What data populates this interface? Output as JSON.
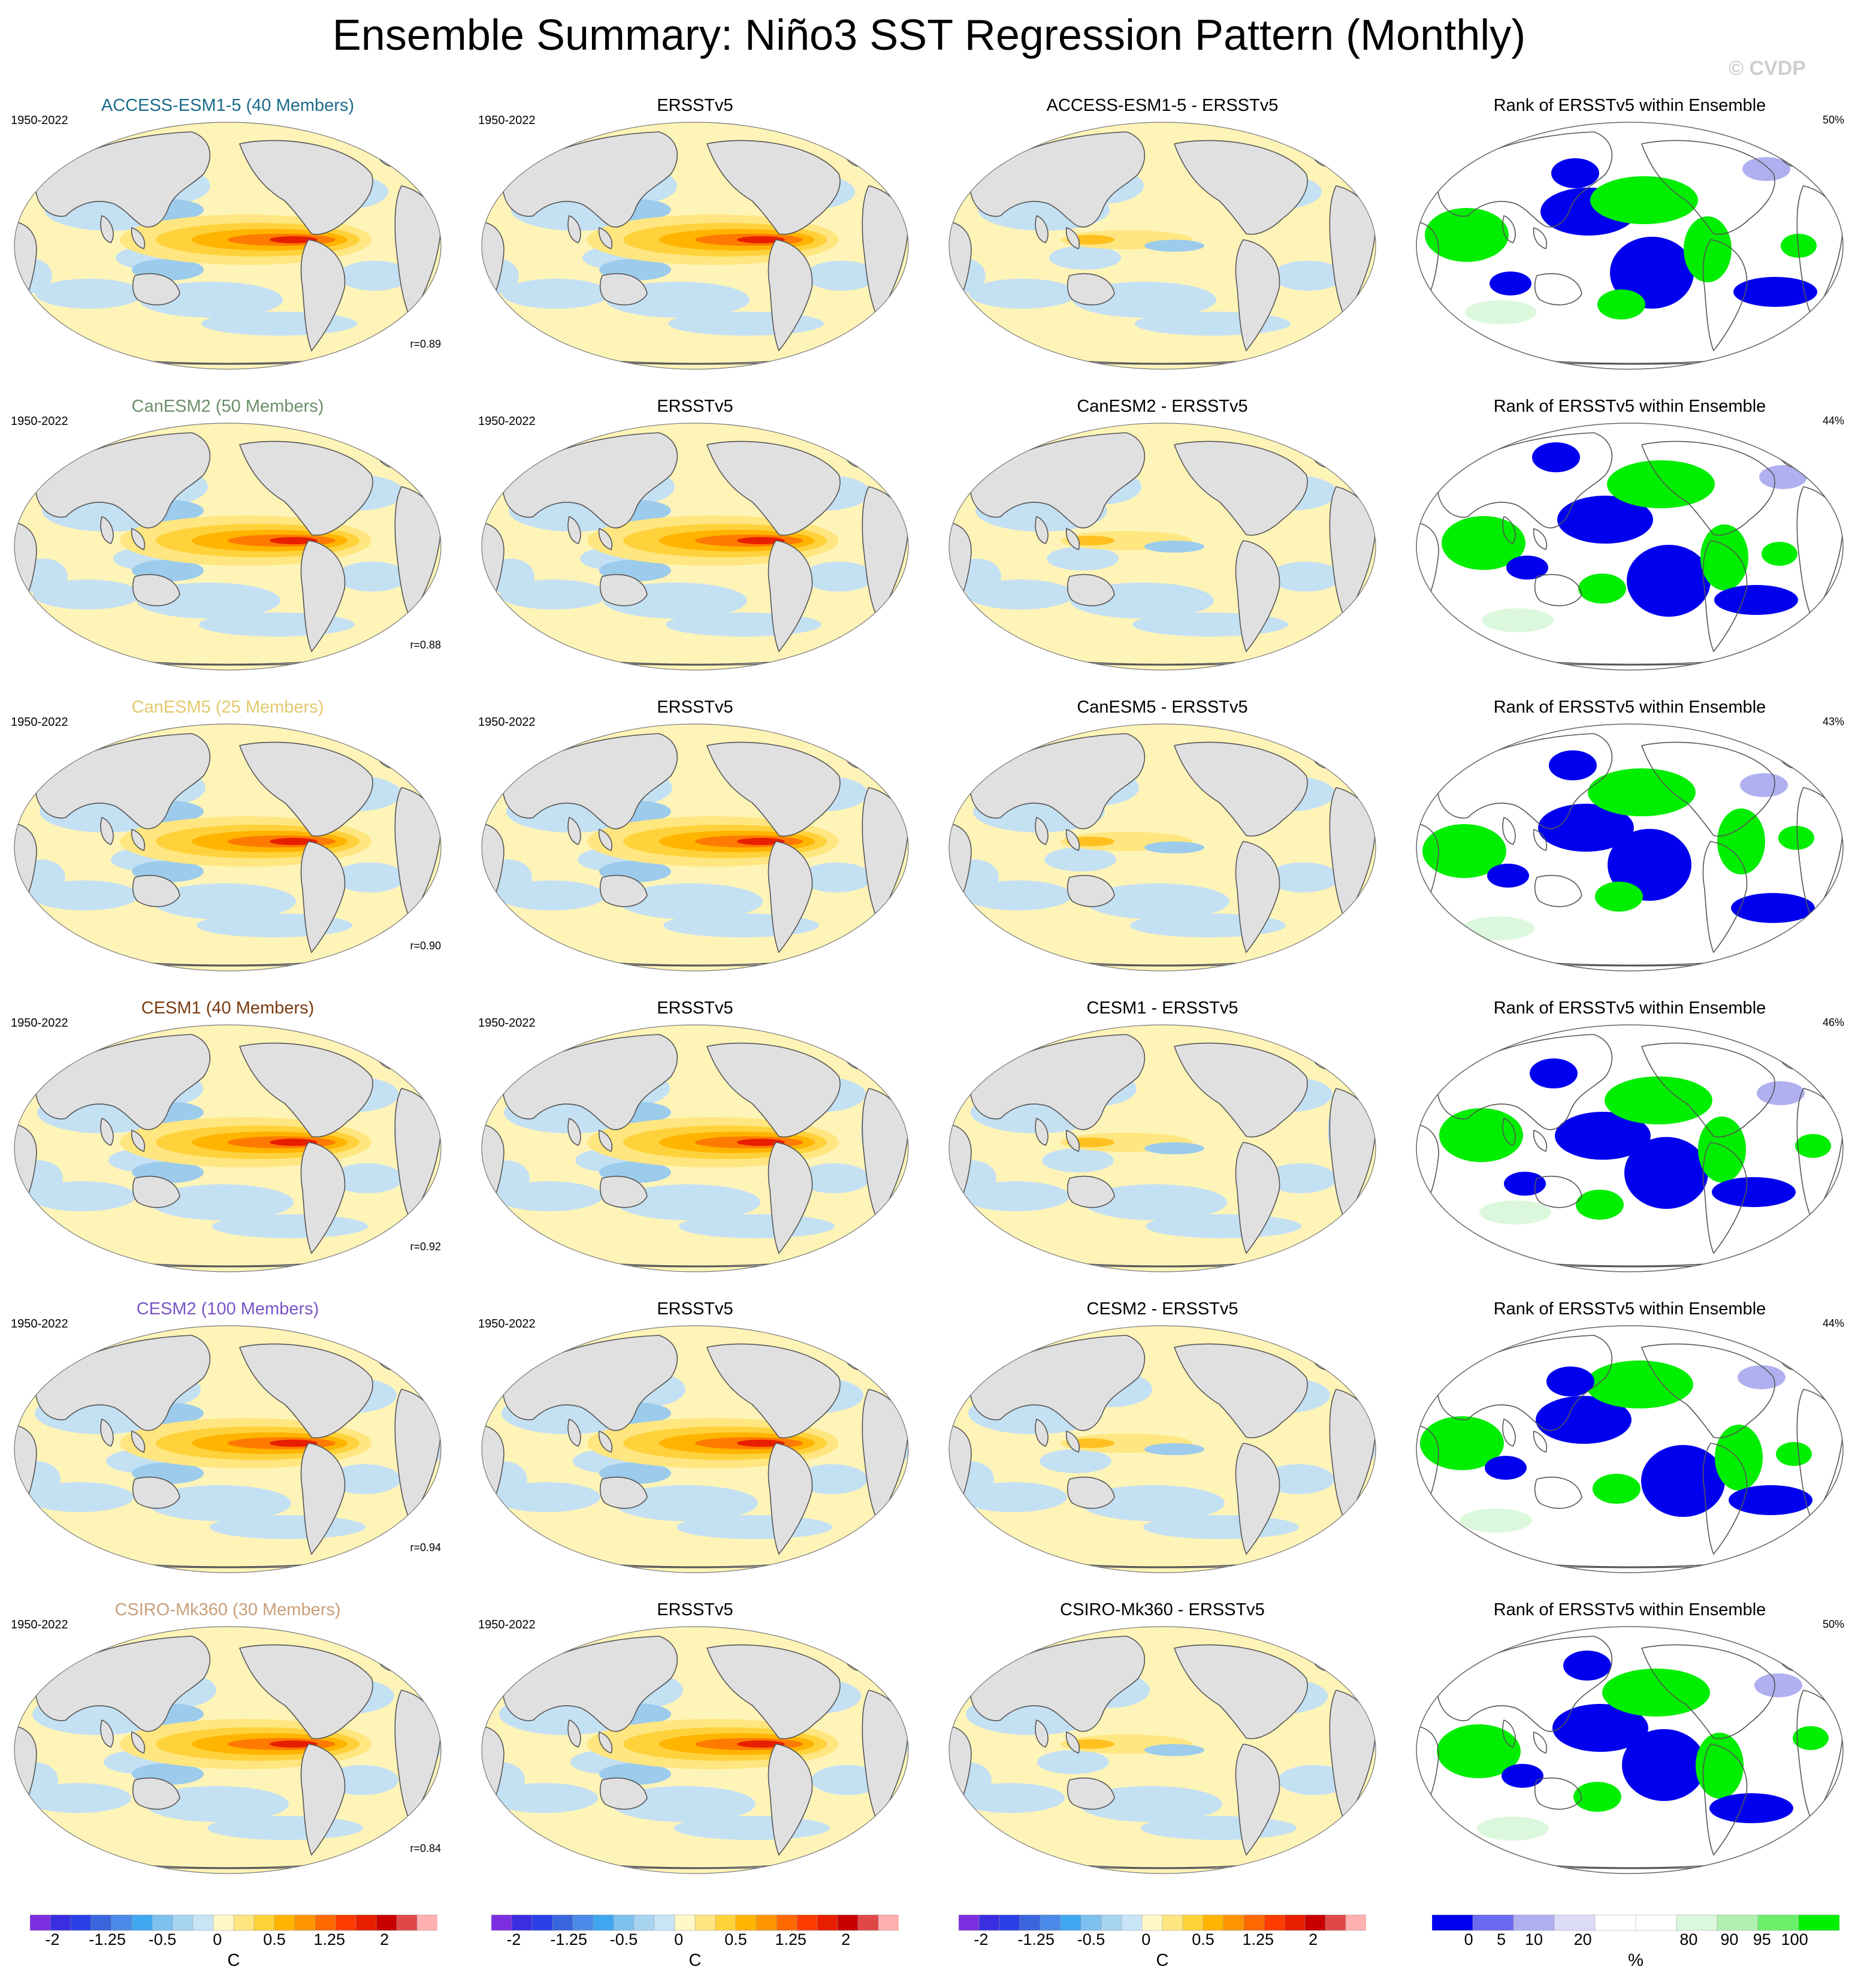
{
  "title": "Ensemble Summary: Niño3 SST Regression Pattern (Monthly)",
  "copyright": "© CVDP",
  "rows": [
    {
      "model": "ACCESS-ESM1-5 (40 Members)",
      "model_color": "#1b6b8a",
      "period": "1950-2022",
      "obs_title": "ERSSTv5",
      "obs_period": "1950-2022",
      "diff_title": "ACCESS-ESM1-5 - ERSSTv5",
      "rank_title": "Rank of ERSSTv5 within Ensemble",
      "rank_pct": "50%",
      "corr": "r=0.89"
    },
    {
      "model": "CanESM2 (50 Members)",
      "model_color": "#6b8f6b",
      "period": "1950-2022",
      "obs_title": "ERSSTv5",
      "obs_period": "1950-2022",
      "diff_title": "CanESM2 - ERSSTv5",
      "rank_title": "Rank of ERSSTv5 within Ensemble",
      "rank_pct": "44%",
      "corr": "r=0.88"
    },
    {
      "model": "CanESM5 (25 Members)",
      "model_color": "#e3c96e",
      "period": "1950-2022",
      "obs_title": "ERSSTv5",
      "obs_period": "1950-2022",
      "diff_title": "CanESM5 - ERSSTv5",
      "rank_title": "Rank of ERSSTv5 within Ensemble",
      "rank_pct": "43%",
      "corr": "r=0.90"
    },
    {
      "model": "CESM1 (40 Members)",
      "model_color": "#7a3b12",
      "period": "1950-2022",
      "obs_title": "ERSSTv5",
      "obs_period": "1950-2022",
      "diff_title": "CESM1 - ERSSTv5",
      "rank_title": "Rank of ERSSTv5 within Ensemble",
      "rank_pct": "46%",
      "corr": "r=0.92"
    },
    {
      "model": "CESM2 (100 Members)",
      "model_color": "#7a55c8",
      "period": "1950-2022",
      "obs_title": "ERSSTv5",
      "obs_period": "1950-2022",
      "diff_title": "CESM2 - ERSSTv5",
      "rank_title": "Rank of ERSSTv5 within Ensemble",
      "rank_pct": "44%",
      "corr": "r=0.94"
    },
    {
      "model": "CSIRO-Mk360 (30 Members)",
      "model_color": "#c9a07a",
      "period": "1950-2022",
      "obs_title": "ERSSTv5",
      "obs_period": "1950-2022",
      "diff_title": "CSIRO-Mk360 - ERSSTv5",
      "rank_title": "Rank of ERSSTv5 within Ensemble",
      "rank_pct": "50%",
      "corr": "r=0.84"
    }
  ],
  "sst_colorbar": {
    "labels": [
      "-2",
      "-1.25",
      "-0.5",
      "0",
      "0.5",
      "1.25",
      "2"
    ],
    "unit": "C",
    "colors": [
      "#7b2fe0",
      "#3a2fe0",
      "#2a40e6",
      "#3a66dd",
      "#4a8ae8",
      "#3fa8f0",
      "#7ec0f0",
      "#a7d4f0",
      "#c9e4f6",
      "#fff8c8",
      "#ffe680",
      "#ffd23c",
      "#ffb400",
      "#ff9400",
      "#ff6a00",
      "#ff3c00",
      "#e81e00",
      "#c80000",
      "#e04848",
      "#ffb0b0"
    ]
  },
  "rank_colorbar": {
    "labels": [
      "0",
      "5",
      "10",
      "20",
      "80",
      "90",
      "95",
      "100"
    ],
    "unit": "%",
    "colors": [
      "#0000f0",
      "#6a6af0",
      "#b0b0f0",
      "#dcdcf8",
      "#ffffff",
      "#ffffff",
      "#dcf8dc",
      "#b0f0b0",
      "#6af06a",
      "#00f000"
    ]
  }
}
